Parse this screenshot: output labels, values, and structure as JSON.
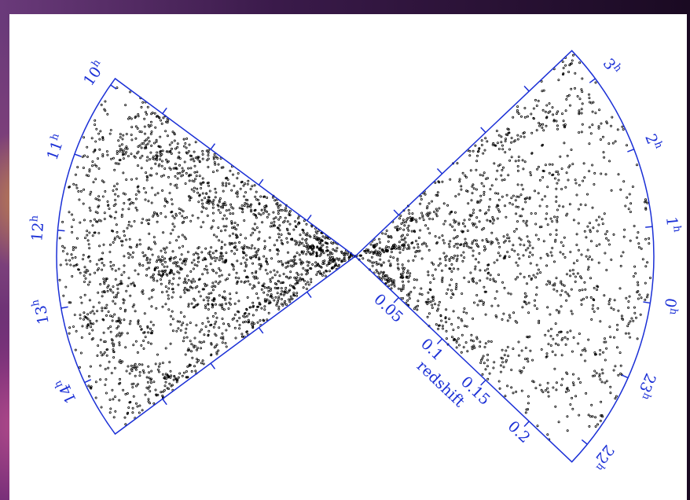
{
  "chart_data": {
    "type": "wedge",
    "left_hours": [
      "10",
      "11",
      "12",
      "13",
      "14"
    ],
    "right_hours": [
      "3",
      "2",
      "1",
      "0",
      "23",
      "22"
    ],
    "hour_unit": "h",
    "redshift_ticks": [
      0.05,
      0.1,
      0.15,
      0.2
    ],
    "redshift_label": "redshift",
    "color": "#1a2fd6"
  }
}
